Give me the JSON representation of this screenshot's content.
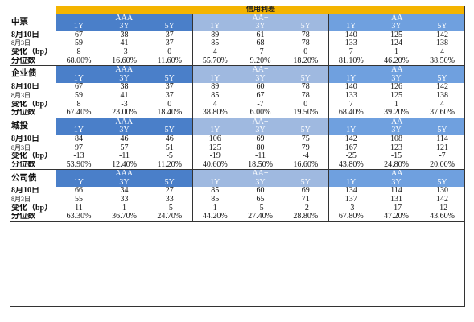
{
  "title": "信用利差",
  "tenors": [
    "1Y",
    "3Y",
    "5Y"
  ],
  "blocks": [
    {
      "name": "中票",
      "ratings": [
        "AAA",
        "AA+",
        "AA"
      ],
      "rows": [
        {
          "label": "8月10日",
          "values": [
            "67",
            "38",
            "37",
            "89",
            "61",
            "78",
            "140",
            "125",
            "142"
          ]
        },
        {
          "label": "8月3日",
          "values": [
            "59",
            "41",
            "37",
            "85",
            "68",
            "78",
            "133",
            "124",
            "138"
          ]
        },
        {
          "label": "变化（bp）",
          "values": [
            "8",
            "-3",
            "0",
            "4",
            "-7",
            "0",
            "7",
            "1",
            "4"
          ]
        },
        {
          "label": "分位数",
          "values": [
            "68.00%",
            "16.60%",
            "11.60%",
            "55.70%",
            "9.20%",
            "18.20%",
            "81.10%",
            "46.20%",
            "38.50%"
          ]
        }
      ]
    },
    {
      "name": "企业债",
      "ratings": [
        "AAA",
        "AA+",
        "AA"
      ],
      "rows": [
        {
          "label": "8月10日",
          "values": [
            "67",
            "38",
            "37",
            "89",
            "60",
            "78",
            "140",
            "126",
            "142"
          ]
        },
        {
          "label": "8月3日",
          "values": [
            "59",
            "41",
            "37",
            "85",
            "67",
            "78",
            "133",
            "125",
            "138"
          ]
        },
        {
          "label": "变化（bp）",
          "values": [
            "8",
            "-3",
            "0",
            "4",
            "-7",
            "0",
            "7",
            "1",
            "4"
          ]
        },
        {
          "label": "分位数",
          "values": [
            "67.40%",
            "23.00%",
            "18.40%",
            "38.80%",
            "6.00%",
            "19.50%",
            "68.40%",
            "39.20%",
            "37.60%"
          ]
        }
      ]
    },
    {
      "name": "城投",
      "ratings": [
        "AAA",
        "AA+",
        "AA"
      ],
      "rows": [
        {
          "label": "8月10日",
          "values": [
            "84",
            "46",
            "46",
            "106",
            "69",
            "75",
            "142",
            "108",
            "114"
          ]
        },
        {
          "label": "8月3日",
          "values": [
            "97",
            "57",
            "51",
            "125",
            "80",
            "79",
            "167",
            "123",
            "121"
          ]
        },
        {
          "label": "变化（bp）",
          "values": [
            "-13",
            "-11",
            "-5",
            "-19",
            "-11",
            "-4",
            "-25",
            "-15",
            "-7"
          ]
        },
        {
          "label": "分位数",
          "values": [
            "53.90%",
            "12.40%",
            "11.20%",
            "40.60%",
            "18.50%",
            "16.60%",
            "43.80%",
            "24.80%",
            "20.00%"
          ]
        }
      ]
    },
    {
      "name": "公司债",
      "ratings": [
        "AAA",
        "AA+",
        "AA"
      ],
      "rows": [
        {
          "label": "8月10日",
          "values": [
            "66",
            "34",
            "27",
            "85",
            "60",
            "69",
            "134",
            "114",
            "130"
          ]
        },
        {
          "label": "8月3日",
          "values": [
            "55",
            "33",
            "33",
            "85",
            "65",
            "71",
            "137",
            "131",
            "142"
          ]
        },
        {
          "label": "变化（bp）",
          "values": [
            "11",
            "1",
            "-5",
            "1",
            "-5",
            "-2",
            "-3",
            "-17",
            "-12"
          ]
        },
        {
          "label": "分位数",
          "values": [
            "63.30%",
            "36.70%",
            "24.70%",
            "44.20%",
            "27.40%",
            "28.80%",
            "67.80%",
            "47.20%",
            "43.60%"
          ]
        }
      ]
    }
  ],
  "colors": {
    "title_bg": "#f4b400",
    "aaa_bg": "#4a7fc9",
    "aaplus_bg": "#9fb9e0",
    "aa_bg": "#6fa0df"
  }
}
